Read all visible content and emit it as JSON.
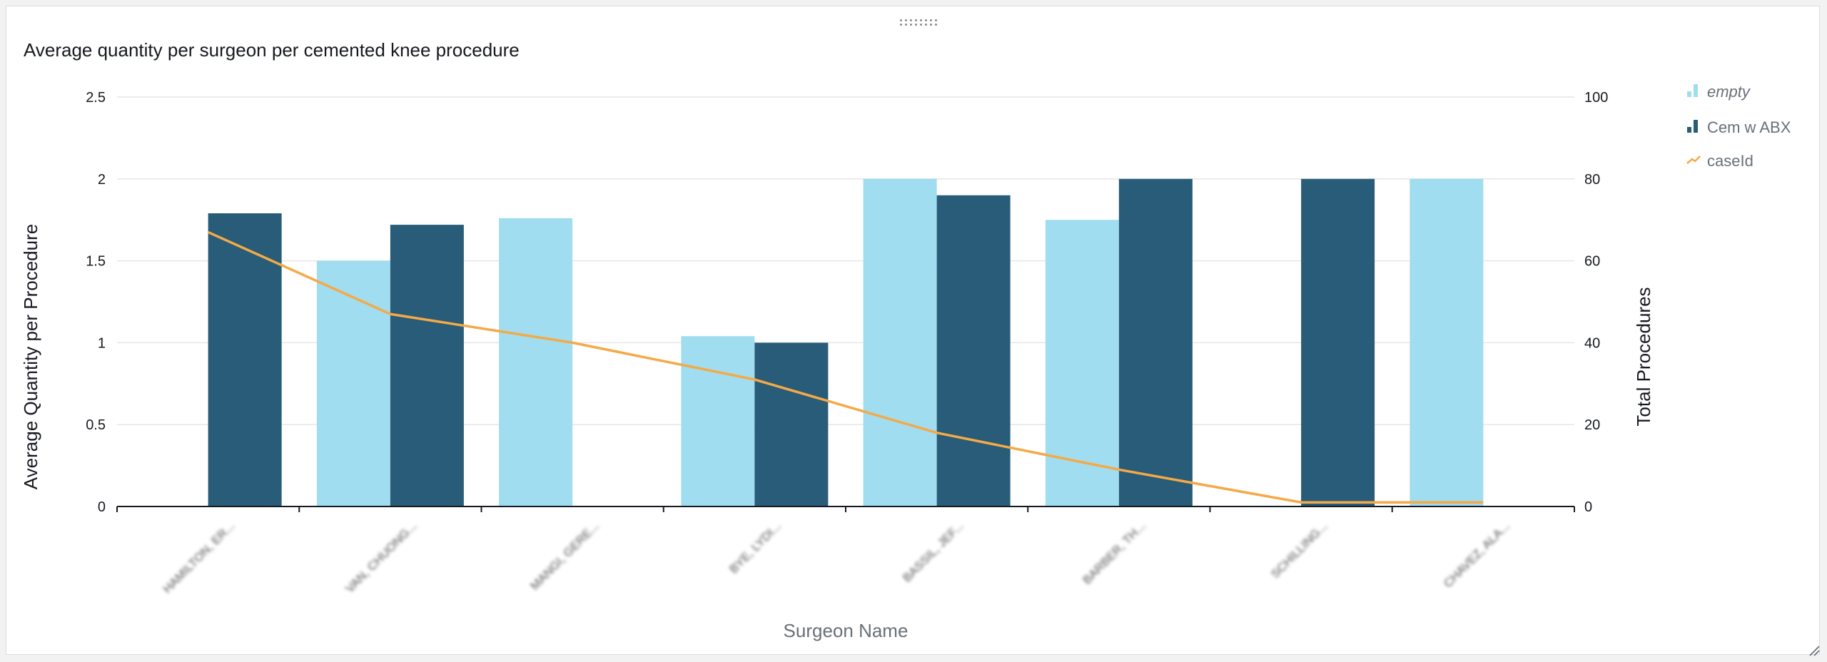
{
  "visual": {
    "title": "Average quantity per surgeon per cemented knee procedure",
    "drag_handle_icon": "drag-handle-icon",
    "resize_handle_icon": "resize-corner-icon"
  },
  "colors": {
    "empty": "#a0ddf0",
    "cem_w_abx": "#285c78",
    "caseid": "#f5a947",
    "grid": "#e6e6e6",
    "axis": "#16191f",
    "text": "#16191f",
    "muted": "#687078"
  },
  "chart_data": {
    "type": "bar",
    "title": "Average quantity per surgeon per cemented knee procedure",
    "xlabel": "Surgeon Name",
    "ylabel": "Average Quantity per Procedure",
    "y2label": "Total Procedures",
    "ylim": [
      0,
      2.5
    ],
    "y2lim": [
      0,
      100
    ],
    "yticks": [
      "0",
      "0.5",
      "1",
      "1.5",
      "2",
      "2.5"
    ],
    "y2ticks": [
      "0",
      "20",
      "40",
      "60",
      "80",
      "100"
    ],
    "grid": true,
    "legend_position": "right",
    "categories": [
      "HAMILTON, ER...",
      "VAN, CHUONG...",
      "MANGI, GERE...",
      "BYE, LYDI...",
      "BASSIL, JEF...",
      "BARBER, TH...",
      "SCHILLING...",
      "CHAVEZ, ALA..."
    ],
    "categories_blurred": true,
    "series": [
      {
        "name": "empty",
        "type": "bar",
        "values": [
          null,
          1.5,
          1.76,
          1.04,
          2.0,
          1.75,
          null,
          2.0
        ]
      },
      {
        "name": "Cem w ABX",
        "type": "bar",
        "values": [
          1.79,
          1.72,
          null,
          1.0,
          1.9,
          2.0,
          2.0,
          null
        ]
      },
      {
        "name": "caseId",
        "type": "line",
        "axis": "right",
        "values": [
          67,
          47,
          40,
          31,
          18,
          9,
          1,
          1
        ]
      }
    ]
  }
}
